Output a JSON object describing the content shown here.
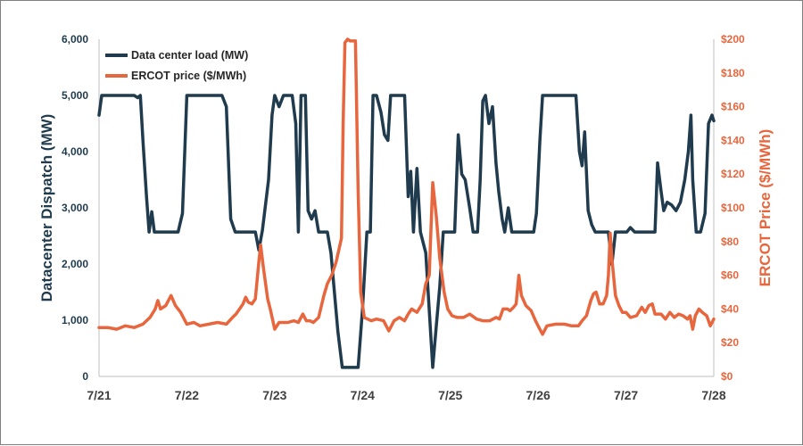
{
  "chart_data": {
    "type": "line",
    "title": "",
    "xlabel": "",
    "ylabel": "Datacenter Dispatch (MW)",
    "y2label": "ERCOT Price ($/MWh)",
    "x_tick_labels": [
      "7/21",
      "7/22",
      "7/23",
      "7/24",
      "7/25",
      "7/26",
      "7/27",
      "7/28"
    ],
    "x_range_days": [
      0,
      7
    ],
    "ylim": [
      0,
      6000
    ],
    "y2lim": [
      0,
      200
    ],
    "y_ticks": [
      "0",
      "1,000",
      "2,000",
      "3,000",
      "4,000",
      "5,000",
      "6,000"
    ],
    "y2_ticks": [
      "$0",
      "$20",
      "$40",
      "$60",
      "$80",
      "$100",
      "$120",
      "$140",
      "$160",
      "$180",
      "$200"
    ],
    "grid": false,
    "legend_position": "top-left",
    "series": [
      {
        "name": "Data center load (MW)",
        "axis": "left",
        "color": "#1f3b4d",
        "points": [
          [
            0.0,
            4650
          ],
          [
            0.03,
            5000
          ],
          [
            0.2,
            5000
          ],
          [
            0.4,
            5000
          ],
          [
            0.44,
            4960
          ],
          [
            0.47,
            5000
          ],
          [
            0.5,
            4200
          ],
          [
            0.54,
            3200
          ],
          [
            0.57,
            2570
          ],
          [
            0.6,
            2930
          ],
          [
            0.63,
            2570
          ],
          [
            0.9,
            2570
          ],
          [
            0.95,
            2900
          ],
          [
            1.0,
            5000
          ],
          [
            1.2,
            5000
          ],
          [
            1.4,
            5000
          ],
          [
            1.45,
            4800
          ],
          [
            1.5,
            2800
          ],
          [
            1.55,
            2570
          ],
          [
            1.78,
            2570
          ],
          [
            1.82,
            2250
          ],
          [
            1.86,
            2600
          ],
          [
            1.93,
            3500
          ],
          [
            1.97,
            4650
          ],
          [
            2.0,
            5000
          ],
          [
            2.05,
            4800
          ],
          [
            2.1,
            5000
          ],
          [
            2.2,
            5000
          ],
          [
            2.24,
            4500
          ],
          [
            2.27,
            2570
          ],
          [
            2.3,
            5000
          ],
          [
            2.35,
            5000
          ],
          [
            2.38,
            2950
          ],
          [
            2.42,
            2800
          ],
          [
            2.46,
            2950
          ],
          [
            2.5,
            2570
          ],
          [
            2.6,
            2570
          ],
          [
            2.64,
            2200
          ],
          [
            2.68,
            1500
          ],
          [
            2.72,
            800
          ],
          [
            2.77,
            160
          ],
          [
            2.95,
            160
          ],
          [
            3.0,
            1200
          ],
          [
            3.05,
            2570
          ],
          [
            3.09,
            2570
          ],
          [
            3.12,
            5000
          ],
          [
            3.16,
            5000
          ],
          [
            3.21,
            4700
          ],
          [
            3.25,
            4300
          ],
          [
            3.29,
            4200
          ],
          [
            3.32,
            5000
          ],
          [
            3.48,
            5000
          ],
          [
            3.52,
            3200
          ],
          [
            3.55,
            3650
          ],
          [
            3.58,
            2570
          ],
          [
            3.62,
            3700
          ],
          [
            3.66,
            2570
          ],
          [
            3.72,
            2200
          ],
          [
            3.8,
            160
          ],
          [
            3.84,
            900
          ],
          [
            3.88,
            1600
          ],
          [
            3.92,
            2570
          ],
          [
            4.05,
            2570
          ],
          [
            4.09,
            4300
          ],
          [
            4.13,
            3600
          ],
          [
            4.17,
            3500
          ],
          [
            4.22,
            3000
          ],
          [
            4.26,
            2570
          ],
          [
            4.31,
            2570
          ],
          [
            4.34,
            3500
          ],
          [
            4.37,
            4900
          ],
          [
            4.4,
            5000
          ],
          [
            4.44,
            4500
          ],
          [
            4.48,
            4800
          ],
          [
            4.52,
            3800
          ],
          [
            4.55,
            3300
          ],
          [
            4.59,
            2800
          ],
          [
            4.62,
            2570
          ],
          [
            4.66,
            3000
          ],
          [
            4.7,
            2570
          ],
          [
            4.95,
            2570
          ],
          [
            4.98,
            2900
          ],
          [
            5.02,
            4200
          ],
          [
            5.05,
            5000
          ],
          [
            5.2,
            5000
          ],
          [
            5.43,
            5000
          ],
          [
            5.47,
            4000
          ],
          [
            5.5,
            3750
          ],
          [
            5.53,
            4350
          ],
          [
            5.57,
            2950
          ],
          [
            5.61,
            2700
          ],
          [
            5.65,
            2570
          ],
          [
            5.74,
            2570
          ],
          [
            5.8,
            2570
          ],
          [
            5.84,
            1990
          ],
          [
            5.88,
            2570
          ],
          [
            5.97,
            2570
          ],
          [
            6.01,
            2570
          ],
          [
            6.05,
            2650
          ],
          [
            6.1,
            2570
          ],
          [
            6.2,
            2570
          ],
          [
            6.29,
            2570
          ],
          [
            6.33,
            2570
          ],
          [
            6.36,
            3800
          ],
          [
            6.4,
            3300
          ],
          [
            6.43,
            2950
          ],
          [
            6.47,
            3100
          ],
          [
            6.52,
            3050
          ],
          [
            6.57,
            2950
          ],
          [
            6.62,
            3100
          ],
          [
            6.67,
            3500
          ],
          [
            6.71,
            4000
          ],
          [
            6.74,
            4650
          ],
          [
            6.76,
            3500
          ],
          [
            6.8,
            2570
          ],
          [
            6.85,
            2570
          ],
          [
            6.9,
            2900
          ],
          [
            6.94,
            4500
          ],
          [
            6.98,
            4650
          ],
          [
            7.0,
            4550
          ]
        ]
      },
      {
        "name": "ERCOT price ($/MWh)",
        "axis": "right",
        "color": "#e8663d",
        "points": [
          [
            0.0,
            29
          ],
          [
            0.1,
            29
          ],
          [
            0.2,
            28
          ],
          [
            0.3,
            30
          ],
          [
            0.4,
            29
          ],
          [
            0.5,
            31
          ],
          [
            0.58,
            35
          ],
          [
            0.64,
            40
          ],
          [
            0.67,
            45
          ],
          [
            0.7,
            40
          ],
          [
            0.76,
            42
          ],
          [
            0.82,
            48
          ],
          [
            0.87,
            42
          ],
          [
            0.93,
            38
          ],
          [
            1.0,
            31
          ],
          [
            1.08,
            32
          ],
          [
            1.15,
            30
          ],
          [
            1.25,
            31
          ],
          [
            1.35,
            32
          ],
          [
            1.45,
            31
          ],
          [
            1.52,
            35
          ],
          [
            1.56,
            37
          ],
          [
            1.6,
            40
          ],
          [
            1.64,
            43
          ],
          [
            1.67,
            47
          ],
          [
            1.7,
            44
          ],
          [
            1.74,
            43
          ],
          [
            1.78,
            46
          ],
          [
            1.82,
            68
          ],
          [
            1.84,
            78
          ],
          [
            1.87,
            65
          ],
          [
            1.92,
            46
          ],
          [
            1.95,
            40
          ],
          [
            2.0,
            28
          ],
          [
            2.05,
            32
          ],
          [
            2.15,
            32
          ],
          [
            2.22,
            33
          ],
          [
            2.27,
            32
          ],
          [
            2.32,
            37
          ],
          [
            2.36,
            33
          ],
          [
            2.4,
            33
          ],
          [
            2.44,
            32
          ],
          [
            2.5,
            35
          ],
          [
            2.56,
            48
          ],
          [
            2.6,
            55
          ],
          [
            2.65,
            60
          ],
          [
            2.7,
            68
          ],
          [
            2.76,
            82
          ],
          [
            2.78,
            150
          ],
          [
            2.8,
            198
          ],
          [
            2.83,
            200
          ],
          [
            2.86,
            199
          ],
          [
            2.92,
            199
          ],
          [
            2.95,
            110
          ],
          [
            2.98,
            50
          ],
          [
            3.02,
            35
          ],
          [
            3.1,
            33
          ],
          [
            3.16,
            34
          ],
          [
            3.24,
            33
          ],
          [
            3.3,
            27
          ],
          [
            3.36,
            33
          ],
          [
            3.42,
            35
          ],
          [
            3.48,
            33
          ],
          [
            3.52,
            37
          ],
          [
            3.56,
            40
          ],
          [
            3.62,
            38
          ],
          [
            3.68,
            43
          ],
          [
            3.72,
            55
          ],
          [
            3.76,
            60
          ],
          [
            3.8,
            115
          ],
          [
            3.84,
            95
          ],
          [
            3.88,
            70
          ],
          [
            3.93,
            50
          ],
          [
            3.97,
            40
          ],
          [
            4.02,
            36
          ],
          [
            4.08,
            35
          ],
          [
            4.15,
            35
          ],
          [
            4.22,
            37
          ],
          [
            4.3,
            34
          ],
          [
            4.37,
            33
          ],
          [
            4.45,
            33
          ],
          [
            4.52,
            35
          ],
          [
            4.56,
            34
          ],
          [
            4.6,
            40
          ],
          [
            4.65,
            40
          ],
          [
            4.68,
            39
          ],
          [
            4.72,
            41
          ],
          [
            4.75,
            43
          ],
          [
            4.78,
            60
          ],
          [
            4.81,
            48
          ],
          [
            4.86,
            42
          ],
          [
            4.92,
            39
          ],
          [
            4.97,
            33
          ],
          [
            5.0,
            30
          ],
          [
            5.05,
            25
          ],
          [
            5.1,
            30
          ],
          [
            5.2,
            31
          ],
          [
            5.3,
            31
          ],
          [
            5.38,
            30
          ],
          [
            5.42,
            30
          ],
          [
            5.46,
            30
          ],
          [
            5.5,
            33
          ],
          [
            5.55,
            36
          ],
          [
            5.6,
            45
          ],
          [
            5.63,
            49
          ],
          [
            5.66,
            50
          ],
          [
            5.7,
            43
          ],
          [
            5.74,
            43
          ],
          [
            5.78,
            48
          ],
          [
            5.8,
            60
          ],
          [
            5.82,
            85
          ],
          [
            5.84,
            70
          ],
          [
            5.88,
            48
          ],
          [
            5.92,
            42
          ],
          [
            5.96,
            38
          ],
          [
            6.0,
            38
          ],
          [
            6.05,
            35
          ],
          [
            6.12,
            36
          ],
          [
            6.18,
            41
          ],
          [
            6.22,
            38
          ],
          [
            6.26,
            42
          ],
          [
            6.3,
            43
          ],
          [
            6.33,
            37
          ],
          [
            6.4,
            37
          ],
          [
            6.45,
            34
          ],
          [
            6.5,
            38
          ],
          [
            6.55,
            35
          ],
          [
            6.6,
            37
          ],
          [
            6.65,
            36
          ],
          [
            6.7,
            34
          ],
          [
            6.73,
            36
          ],
          [
            6.76,
            28
          ],
          [
            6.79,
            36
          ],
          [
            6.83,
            40
          ],
          [
            6.87,
            38
          ],
          [
            6.92,
            36
          ],
          [
            6.96,
            30
          ],
          [
            7.0,
            34
          ]
        ]
      }
    ]
  }
}
